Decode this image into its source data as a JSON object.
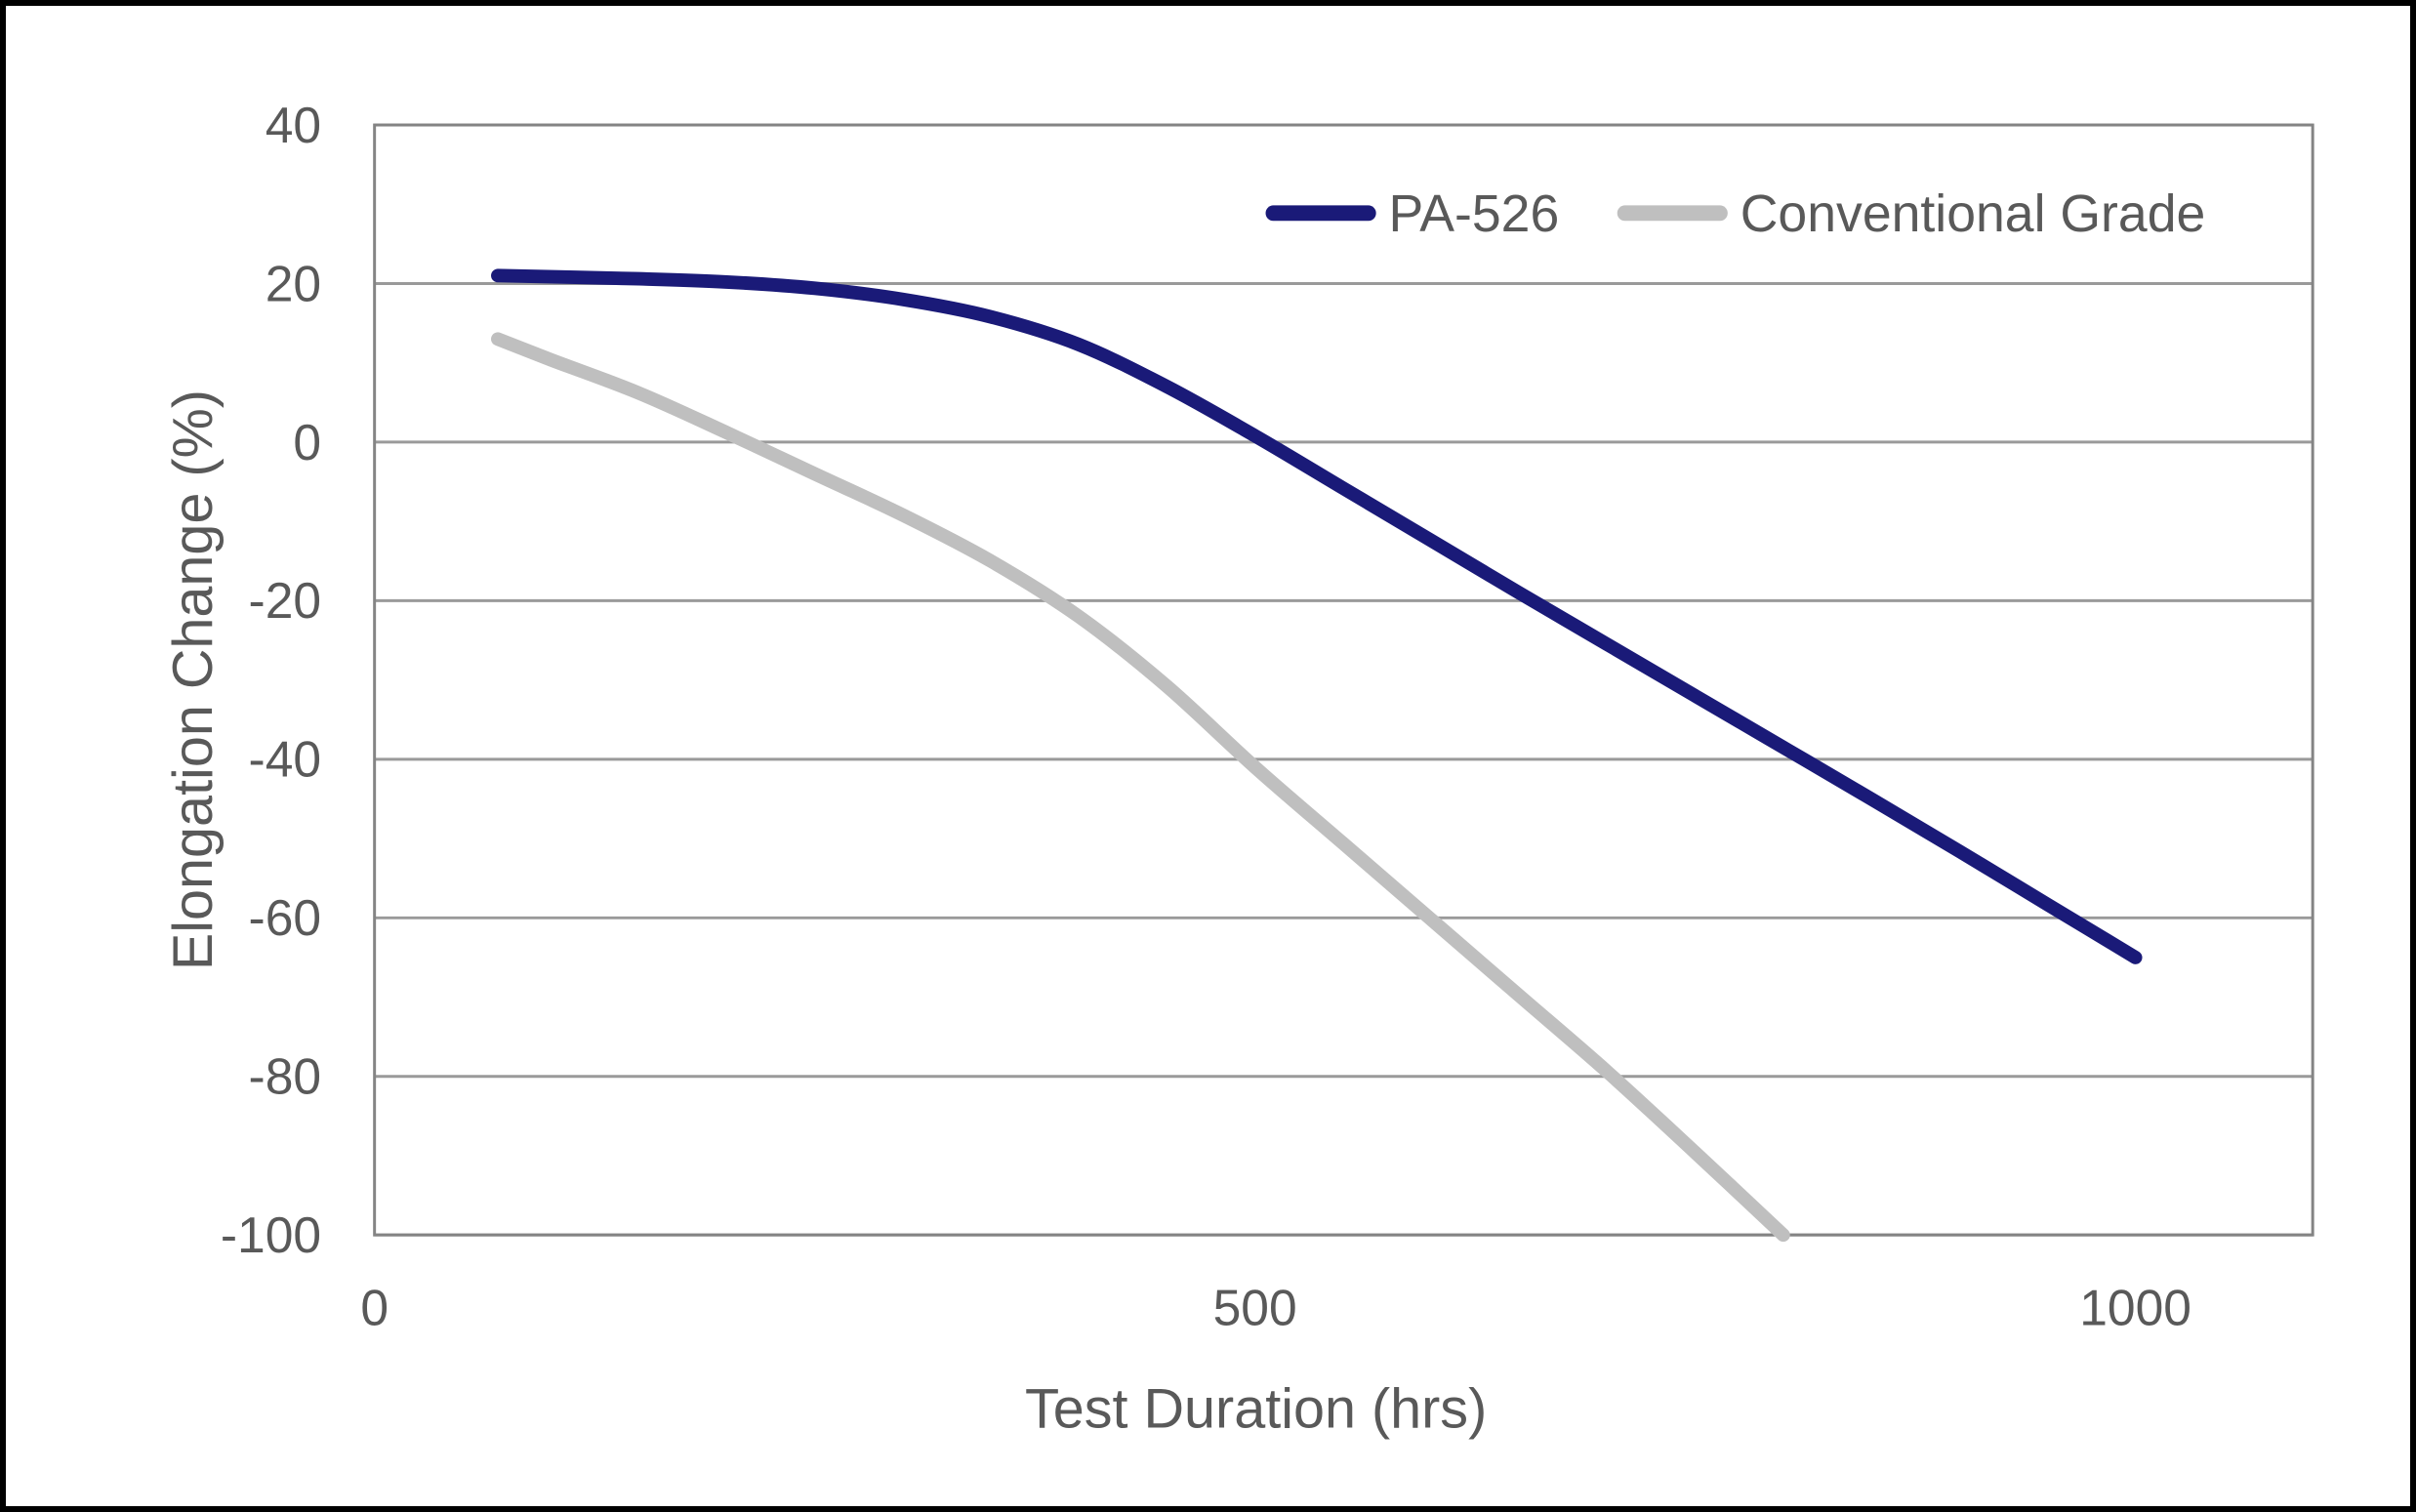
{
  "chart_data": {
    "type": "line",
    "title": "",
    "xlabel": "Test Duration (hrs)",
    "ylabel": "Elongation Change (%)",
    "xlim": [
      0,
      1100
    ],
    "ylim": [
      -100,
      40
    ],
    "x_ticks": [
      0,
      500,
      1000
    ],
    "y_ticks": [
      40,
      20,
      0,
      -20,
      -40,
      -60,
      -80,
      -100
    ],
    "grid": "horizontal-only",
    "legend_position": "top-right-inside",
    "background_color": "#ffffff",
    "text_color": "#595959",
    "gridline_color": "#9a9a9a",
    "border_color": "#848484",
    "series": [
      {
        "name": "PA-526",
        "color": "#1a1a78",
        "points": [
          [
            70,
            21
          ],
          [
            150,
            20.6
          ],
          [
            200,
            20.2
          ],
          [
            250,
            19.4
          ],
          [
            300,
            18
          ],
          [
            350,
            15.8
          ],
          [
            400,
            12.3
          ],
          [
            450,
            7
          ],
          [
            500,
            0.8
          ],
          [
            550,
            -5.8
          ],
          [
            600,
            -12.4
          ],
          [
            650,
            -19
          ],
          [
            700,
            -25.5
          ],
          [
            750,
            -32
          ],
          [
            800,
            -38.5
          ],
          [
            850,
            -45
          ],
          [
            900,
            -51.6
          ],
          [
            950,
            -58.3
          ],
          [
            1000,
            -65
          ]
        ]
      },
      {
        "name": "Conventional Grade",
        "color": "#bfbfbf",
        "points": [
          [
            70,
            13
          ],
          [
            100,
            10.4
          ],
          [
            150,
            6.2
          ],
          [
            200,
            1.2
          ],
          [
            250,
            -4
          ],
          [
            300,
            -9.2
          ],
          [
            350,
            -15
          ],
          [
            400,
            -22
          ],
          [
            450,
            -30.8
          ],
          [
            500,
            -41
          ],
          [
            550,
            -50.6
          ],
          [
            600,
            -60.2
          ],
          [
            650,
            -69.8
          ],
          [
            700,
            -79.4
          ],
          [
            750,
            -89.6
          ],
          [
            800,
            -100
          ]
        ]
      }
    ]
  }
}
